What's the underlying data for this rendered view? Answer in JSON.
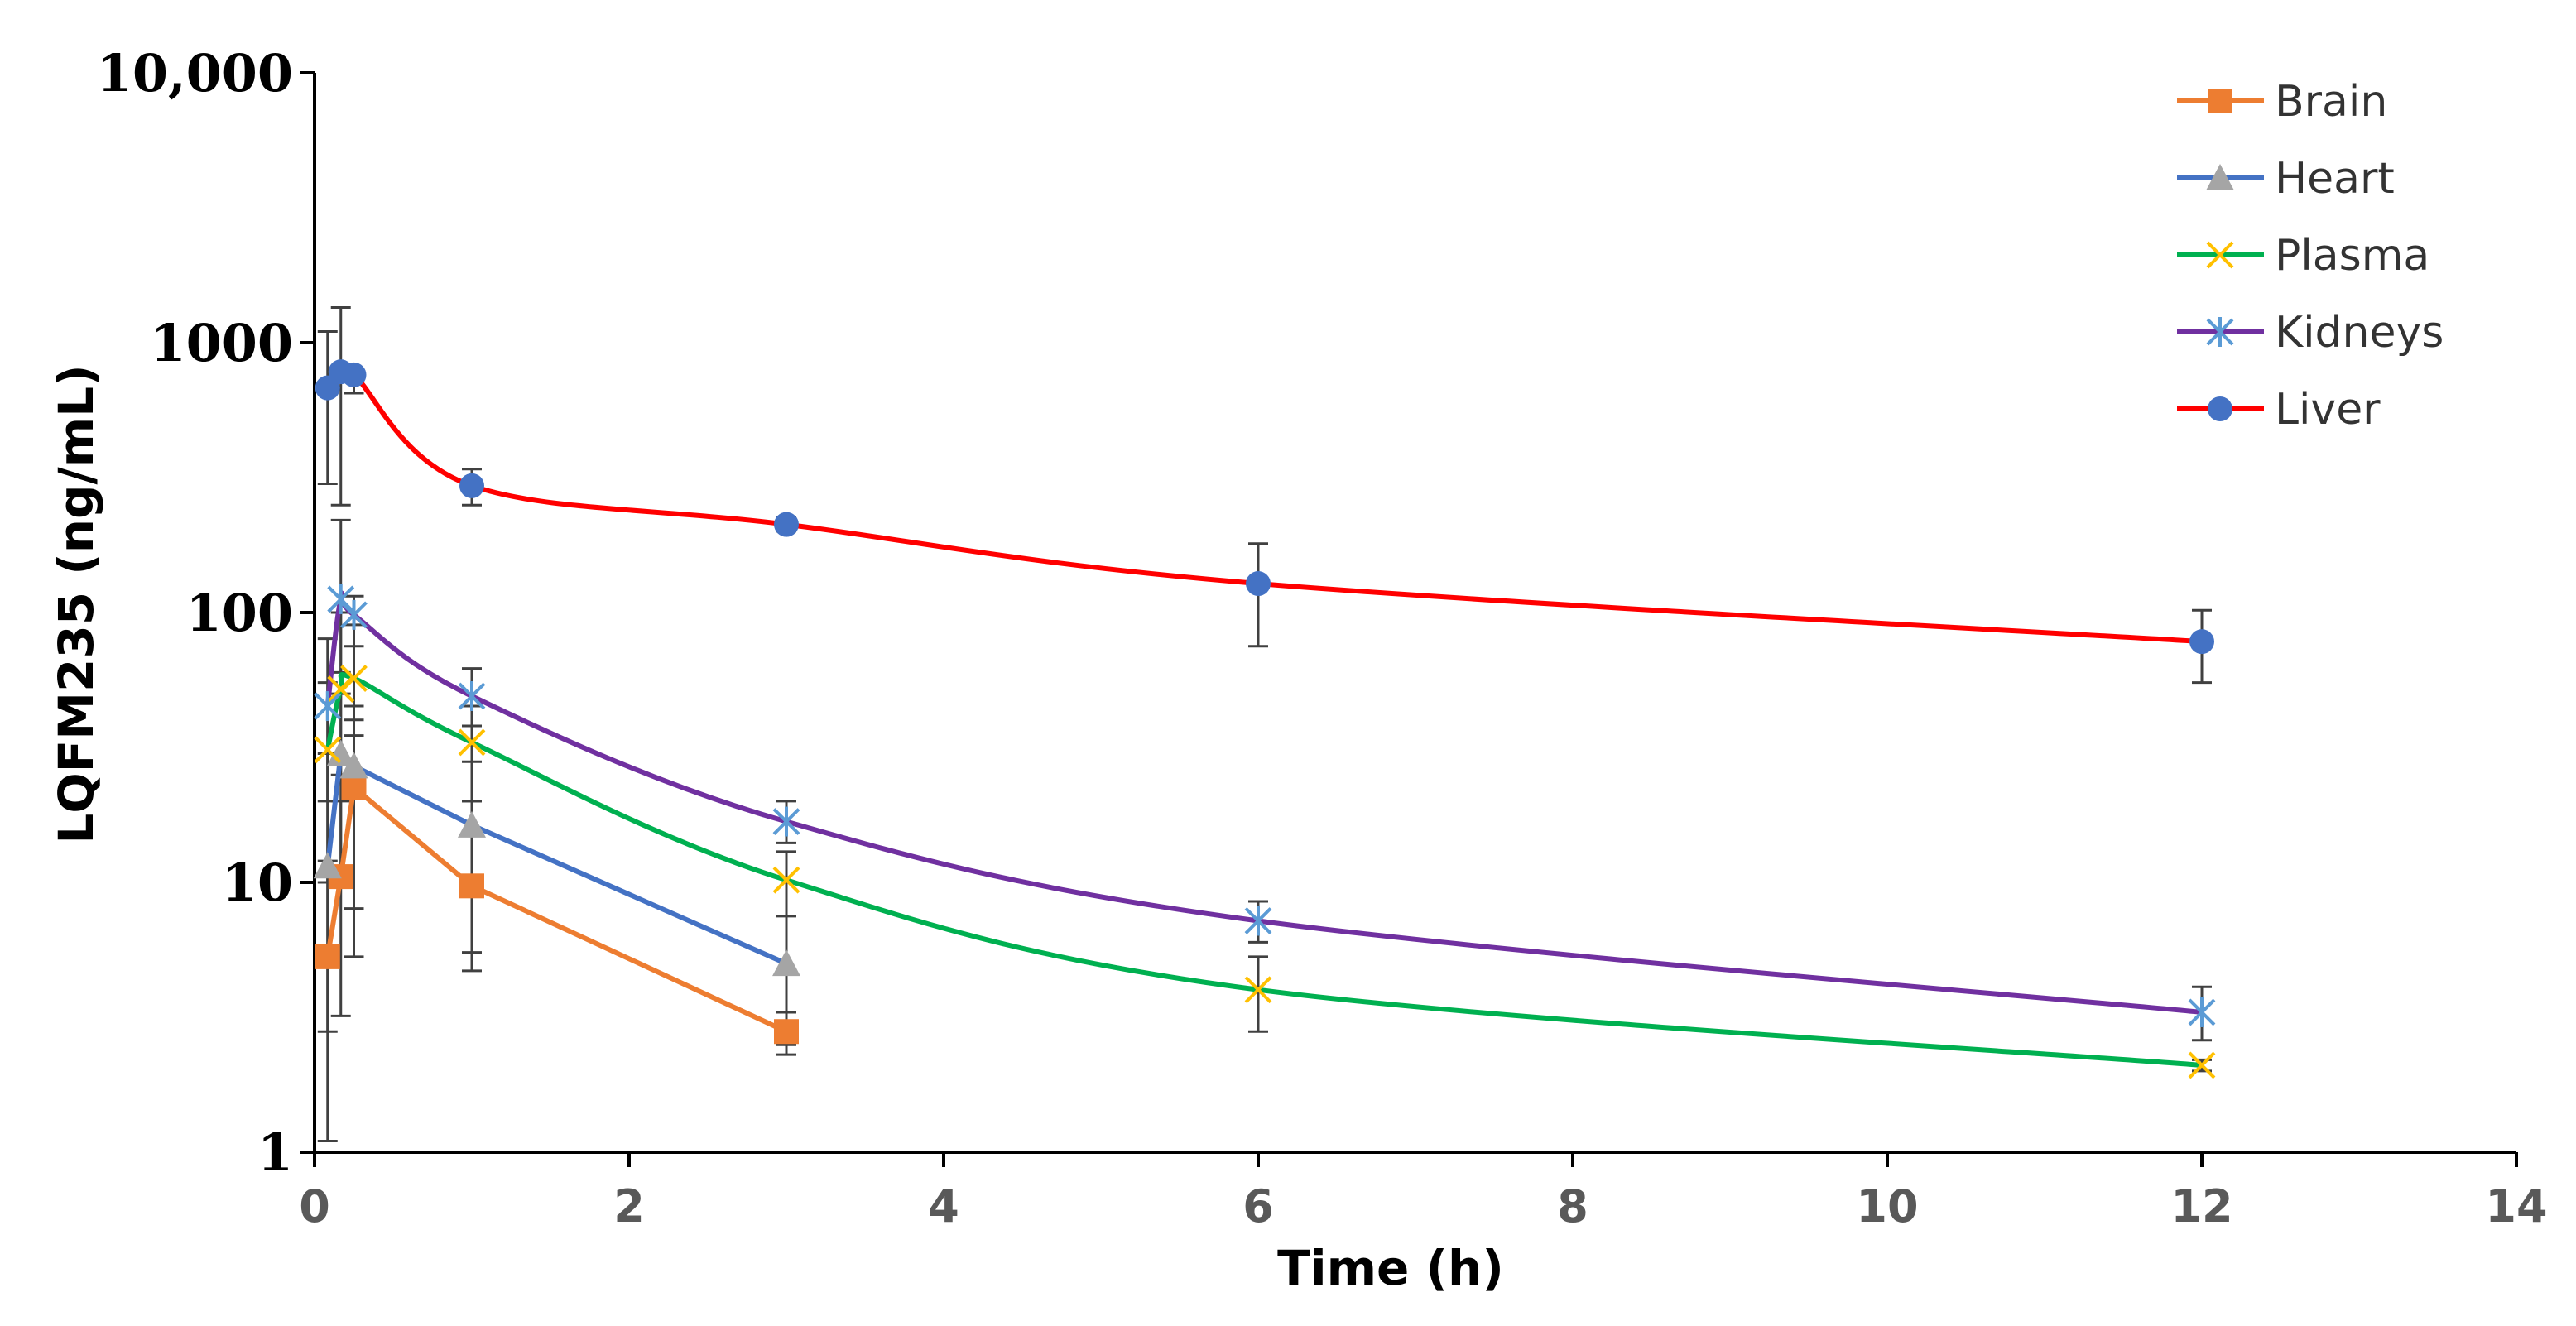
{
  "chart_data": {
    "type": "line",
    "title": "",
    "xlabel": "Time (h)",
    "ylabel": "LQFM235 (ng/mL)",
    "xlim": [
      0,
      14
    ],
    "ylim": [
      1,
      10000
    ],
    "yscale": "log",
    "x_ticks": [
      "0",
      "2",
      "4",
      "6",
      "8",
      "10",
      "12",
      "14"
    ],
    "y_ticks": [
      "1",
      "10",
      "100",
      "1000",
      "10,000"
    ],
    "legend_position": "top-right",
    "series": [
      {
        "name": "Brain",
        "color": "#ED7D31",
        "marker": "square",
        "x": [
          0.083,
          0.167,
          0.25,
          1,
          3
        ],
        "y": [
          5.3,
          10.5,
          22.5,
          9.7,
          2.8
        ],
        "err_low": [
          1.1,
          3.2,
          5.3,
          4.7,
          2.3
        ],
        "err_high": [
          12,
          20,
          40,
          20,
          3.3
        ]
      },
      {
        "name": "Heart",
        "color": "#4472C4",
        "marker": "triangle",
        "x": [
          0.083,
          0.167,
          0.25,
          1,
          3
        ],
        "y": [
          11.5,
          30.0,
          27.0,
          16.3,
          5.0
        ],
        "err_low": [
          2.8,
          10,
          8,
          5.5,
          2.5
        ],
        "err_high": [
          30,
          60,
          45,
          28,
          7.5
        ]
      },
      {
        "name": "Plasma",
        "color": "#00B050",
        "marker": "x",
        "x": [
          0.083,
          0.167,
          0.25,
          1,
          3,
          6,
          12
        ],
        "y": [
          31,
          52,
          57,
          33,
          10.2,
          4.0,
          2.1
        ],
        "err_low": [
          10,
          25,
          35,
          20,
          7.5,
          2.8,
          2.0
        ],
        "err_high": [
          55,
          100,
          90,
          45,
          13,
          5.3,
          2.2
        ]
      },
      {
        "name": "Kidneys",
        "color": "#7030A0",
        "marker": "asterisk",
        "x": [
          0.083,
          0.167,
          0.25,
          1,
          3,
          6,
          12
        ],
        "y": [
          45,
          112,
          98,
          49,
          16.8,
          7.2,
          3.3
        ],
        "err_low": [
          20,
          50,
          75,
          38,
          14,
          6.0,
          2.6
        ],
        "err_high": [
          80,
          220,
          115,
          62,
          20,
          8.5,
          4.1
        ]
      },
      {
        "name": "Liver",
        "color": "#FF0000",
        "marker": "circle",
        "x": [
          0.083,
          0.167,
          0.25,
          1,
          3,
          6,
          12
        ],
        "y": [
          680,
          780,
          760,
          295,
          212,
          128,
          78
        ],
        "err_low": [
          300,
          250,
          650,
          250,
          200,
          75,
          55
        ],
        "err_high": [
          1100,
          1350,
          800,
          340,
          225,
          180,
          102
        ]
      }
    ]
  }
}
